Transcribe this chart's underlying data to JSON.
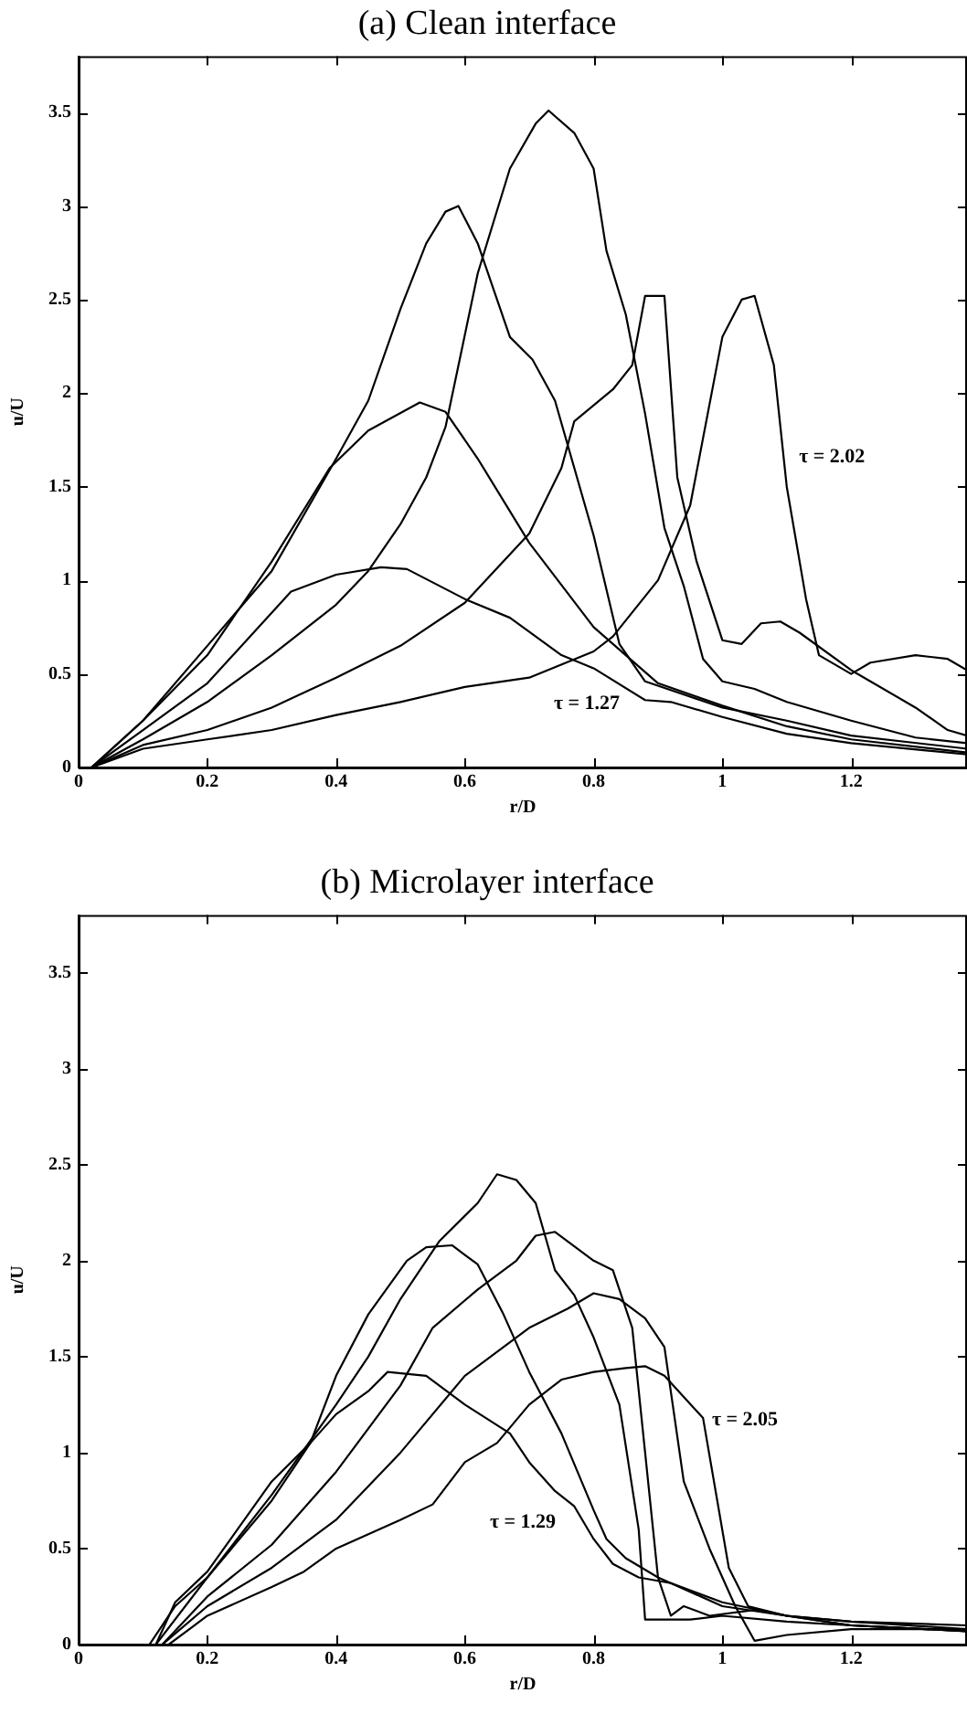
{
  "chart_data": [
    {
      "type": "line",
      "title": "(a) Clean interface",
      "xlabel": "r/D",
      "ylabel": "u/U",
      "xlim": [
        0,
        1.38
      ],
      "ylim": [
        0,
        3.8
      ],
      "xticks": [
        0,
        0.2,
        0.4,
        0.6,
        0.8,
        1,
        1.2
      ],
      "yticks": [
        0,
        0.5,
        1,
        1.5,
        2,
        2.5,
        3,
        3.5
      ],
      "grid": false,
      "legend": false,
      "marker": "none",
      "line_style": "solid",
      "annotations": [
        "τ = 1.27",
        "τ = 2.02"
      ],
      "series": [
        {
          "color": "#000000",
          "x": [
            0.02,
            0.1,
            0.2,
            0.33,
            0.4,
            0.47,
            0.51,
            0.6,
            0.67,
            0.75,
            0.8,
            0.88,
            0.92,
            1.0,
            1.1,
            1.2,
            1.38
          ],
          "values": [
            0,
            0.2,
            0.45,
            0.94,
            1.03,
            1.07,
            1.06,
            0.9,
            0.8,
            0.6,
            0.53,
            0.36,
            0.35,
            0.27,
            0.18,
            0.13,
            0.07
          ]
        },
        {
          "color": "#000000",
          "x": [
            0.02,
            0.1,
            0.2,
            0.3,
            0.39,
            0.45,
            0.53,
            0.57,
            0.62,
            0.7,
            0.8,
            0.9,
            1.0,
            1.1,
            1.2,
            1.38
          ],
          "values": [
            0,
            0.25,
            0.6,
            1.1,
            1.6,
            1.8,
            1.95,
            1.9,
            1.65,
            1.2,
            0.75,
            0.45,
            0.33,
            0.22,
            0.15,
            0.08
          ]
        },
        {
          "color": "#000000",
          "x": [
            0.02,
            0.1,
            0.2,
            0.3,
            0.4,
            0.45,
            0.5,
            0.54,
            0.57,
            0.59,
            0.62,
            0.67,
            0.705,
            0.74,
            0.8,
            0.84,
            0.88,
            1.0,
            1.1,
            1.2,
            1.38
          ],
          "values": [
            0,
            0.25,
            0.65,
            1.05,
            1.65,
            1.96,
            2.45,
            2.8,
            2.97,
            3.0,
            2.8,
            2.3,
            2.18,
            1.96,
            1.24,
            0.66,
            0.46,
            0.32,
            0.25,
            0.17,
            0.1
          ]
        },
        {
          "color": "#000000",
          "x": [
            0.02,
            0.1,
            0.2,
            0.3,
            0.4,
            0.45,
            0.5,
            0.54,
            0.57,
            0.62,
            0.67,
            0.71,
            0.73,
            0.77,
            0.8,
            0.82,
            0.85,
            0.88,
            0.91,
            0.94,
            0.97,
            1.0,
            1.05,
            1.1,
            1.2,
            1.3,
            1.38
          ],
          "values": [
            0,
            0.15,
            0.35,
            0.6,
            0.87,
            1.05,
            1.3,
            1.55,
            1.82,
            2.64,
            3.2,
            3.44,
            3.51,
            3.39,
            3.2,
            2.76,
            2.42,
            1.89,
            1.28,
            0.97,
            0.58,
            0.46,
            0.42,
            0.35,
            0.25,
            0.16,
            0.13
          ]
        },
        {
          "color": "#000000",
          "x": [
            0.02,
            0.1,
            0.2,
            0.3,
            0.4,
            0.5,
            0.6,
            0.7,
            0.75,
            0.77,
            0.83,
            0.86,
            0.88,
            0.91,
            0.93,
            0.96,
            1.0,
            1.03,
            1.06,
            1.09,
            1.12,
            1.2,
            1.3,
            1.35,
            1.38
          ],
          "values": [
            0,
            0.12,
            0.2,
            0.32,
            0.48,
            0.65,
            0.88,
            1.25,
            1.6,
            1.85,
            2.02,
            2.15,
            2.52,
            2.52,
            1.55,
            1.1,
            0.68,
            0.66,
            0.77,
            0.78,
            0.72,
            0.52,
            0.32,
            0.2,
            0.17
          ]
        },
        {
          "color": "#000000",
          "x": [
            0.02,
            0.1,
            0.2,
            0.3,
            0.4,
            0.5,
            0.6,
            0.7,
            0.8,
            0.83,
            0.9,
            0.95,
            1.0,
            1.03,
            1.05,
            1.08,
            1.1,
            1.13,
            1.15,
            1.2,
            1.23,
            1.3,
            1.35,
            1.38
          ],
          "values": [
            0,
            0.1,
            0.15,
            0.2,
            0.28,
            0.35,
            0.43,
            0.48,
            0.62,
            0.7,
            1.0,
            1.4,
            2.3,
            2.5,
            2.52,
            2.15,
            1.5,
            0.9,
            0.6,
            0.5,
            0.56,
            0.6,
            0.58,
            0.52
          ]
        }
      ]
    },
    {
      "type": "line",
      "title": "(b) Microlayer interface",
      "xlabel": "r/D",
      "ylabel": "u/U",
      "xlim": [
        0,
        1.38
      ],
      "ylim": [
        0,
        3.8
      ],
      "xticks": [
        0,
        0.2,
        0.4,
        0.6,
        0.8,
        1,
        1.2
      ],
      "yticks": [
        0,
        0.5,
        1,
        1.5,
        2,
        2.5,
        3,
        3.5
      ],
      "grid": false,
      "legend": false,
      "marker": "none",
      "line_style": "solid",
      "annotations": [
        "τ = 1.29",
        "τ = 2.05"
      ],
      "series": [
        {
          "color": "#000000",
          "x": [
            0.11,
            0.15,
            0.2,
            0.3,
            0.36,
            0.4,
            0.45,
            0.48,
            0.54,
            0.6,
            0.67,
            0.7,
            0.74,
            0.77,
            0.8,
            0.83,
            0.87,
            0.92,
            1.0,
            1.1,
            1.2,
            1.38
          ],
          "values": [
            0,
            0.2,
            0.35,
            0.75,
            1.05,
            1.2,
            1.32,
            1.42,
            1.4,
            1.25,
            1.1,
            0.95,
            0.8,
            0.72,
            0.55,
            0.42,
            0.35,
            0.32,
            0.22,
            0.15,
            0.1,
            0.07
          ]
        },
        {
          "color": "#000000",
          "x": [
            0.12,
            0.15,
            0.2,
            0.3,
            0.36,
            0.4,
            0.45,
            0.51,
            0.54,
            0.58,
            0.62,
            0.66,
            0.7,
            0.75,
            0.8,
            0.82,
            0.85,
            0.9,
            1.0,
            1.1,
            1.2,
            1.38
          ],
          "values": [
            0,
            0.22,
            0.38,
            0.85,
            1.05,
            1.4,
            1.72,
            2.0,
            2.07,
            2.08,
            1.98,
            1.72,
            1.42,
            1.1,
            0.7,
            0.55,
            0.45,
            0.35,
            0.2,
            0.15,
            0.1,
            0.07
          ]
        },
        {
          "color": "#000000",
          "x": [
            0.12,
            0.2,
            0.3,
            0.4,
            0.45,
            0.5,
            0.56,
            0.62,
            0.65,
            0.68,
            0.71,
            0.74,
            0.77,
            0.8,
            0.84,
            0.87,
            0.88,
            0.95,
            1.0,
            1.1,
            1.2,
            1.38
          ],
          "values": [
            0,
            0.35,
            0.78,
            1.25,
            1.5,
            1.8,
            2.1,
            2.3,
            2.45,
            2.42,
            2.3,
            1.95,
            1.82,
            1.6,
            1.25,
            0.6,
            0.13,
            0.13,
            0.15,
            0.12,
            0.1,
            0.07
          ]
        },
        {
          "color": "#000000",
          "x": [
            0.13,
            0.2,
            0.3,
            0.4,
            0.5,
            0.55,
            0.62,
            0.68,
            0.71,
            0.74,
            0.8,
            0.83,
            0.86,
            0.88,
            0.9,
            0.92,
            0.94,
            0.98,
            1.05,
            1.1,
            1.2,
            1.38
          ],
          "values": [
            0,
            0.25,
            0.52,
            0.9,
            1.35,
            1.65,
            1.85,
            2.0,
            2.13,
            2.15,
            2.0,
            1.95,
            1.65,
            1.0,
            0.35,
            0.15,
            0.2,
            0.15,
            0.18,
            0.15,
            0.12,
            0.08
          ]
        },
        {
          "color": "#000000",
          "x": [
            0.13,
            0.2,
            0.3,
            0.4,
            0.5,
            0.6,
            0.7,
            0.76,
            0.8,
            0.84,
            0.88,
            0.91,
            0.94,
            0.98,
            1.02,
            1.05,
            1.1,
            1.2,
            1.38
          ],
          "values": [
            0,
            0.2,
            0.4,
            0.65,
            1.0,
            1.4,
            1.65,
            1.75,
            1.83,
            1.8,
            1.7,
            1.55,
            0.85,
            0.5,
            0.2,
            0.02,
            0.05,
            0.08,
            0.08
          ]
        },
        {
          "color": "#000000",
          "x": [
            0.14,
            0.2,
            0.3,
            0.35,
            0.4,
            0.5,
            0.55,
            0.6,
            0.65,
            0.7,
            0.75,
            0.8,
            0.85,
            0.88,
            0.91,
            0.97,
            1.01,
            1.04,
            1.1,
            1.2,
            1.38
          ],
          "values": [
            0,
            0.15,
            0.3,
            0.38,
            0.5,
            0.65,
            0.73,
            0.95,
            1.05,
            1.25,
            1.38,
            1.42,
            1.44,
            1.45,
            1.4,
            1.18,
            0.4,
            0.2,
            0.15,
            0.12,
            0.1
          ]
        }
      ]
    }
  ]
}
